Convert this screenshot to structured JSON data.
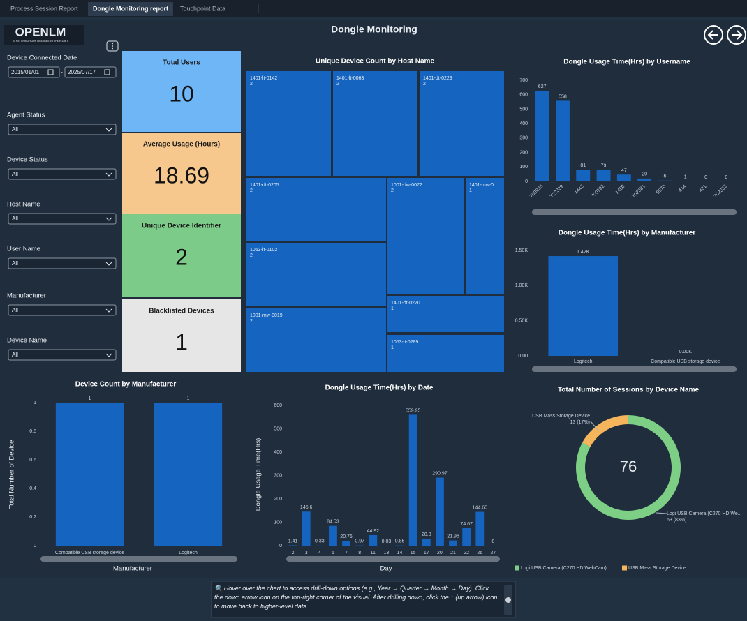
{
  "tabs": [
    {
      "label": "Process Session Report",
      "active": false
    },
    {
      "label": "Dongle Monitoring report",
      "active": true
    },
    {
      "label": "Touchpoint Data",
      "active": false
    }
  ],
  "header": {
    "title": "Dongle Monitoring",
    "logo": "OPENLM",
    "tagline": "STRETCHING YOUR LICENSES TO THEIR LIMIT"
  },
  "filters": {
    "date": {
      "label": "Device Connected Date",
      "from": "2015/01/01",
      "separator": "-",
      "to": "2025/07/17"
    },
    "dropdowns": [
      {
        "label": "Agent Status",
        "value": "All"
      },
      {
        "label": "Device Status",
        "value": "All"
      },
      {
        "label": "Host Name",
        "value": "All"
      },
      {
        "label": "User Name",
        "value": "All"
      },
      {
        "label": "Manufacturer",
        "value": "All"
      },
      {
        "label": "Device Name",
        "value": "All"
      }
    ]
  },
  "cards": [
    {
      "title": "Total Users",
      "value": 10,
      "color": "#6fb6f7"
    },
    {
      "title": "Average Usage (Hours)",
      "value": 18.69,
      "color": "#f6c88d"
    },
    {
      "title": "Unique Device Identifier",
      "value": 2,
      "color": "#7ccb89"
    },
    {
      "title": "Blacklisted Devices",
      "value": 1,
      "color": "#e6e6e6"
    }
  ],
  "chart_data": [
    {
      "type": "treemap",
      "title": "Unique Device Count by Host Name",
      "color": "#1565c0",
      "categories": [
        "1401-lt-0142",
        "1401-lt-0063",
        "1401-dt-0229",
        "1401-dt-0205",
        "1001-dw-0072",
        "1401-mw-0...",
        "1053-lt-0102",
        "1401-dt-0220",
        "1001-mw-0019",
        "1053-lt-0289"
      ],
      "values": [
        2,
        2,
        2,
        2,
        2,
        1,
        2,
        1,
        2,
        1
      ]
    },
    {
      "type": "bar",
      "title": "Dongle Usage Time(Hrs) by Username",
      "color": "#1565c0",
      "categories": [
        "700933",
        "T22339",
        "1442",
        "700792",
        "1450",
        "702881",
        "9570",
        "414",
        "431",
        "702332"
      ],
      "values": [
        627,
        558,
        81,
        79,
        47,
        20,
        6,
        1,
        0,
        0
      ],
      "ylim": [
        0,
        700
      ],
      "yticks": [
        0,
        100,
        200,
        300,
        400,
        500,
        600,
        700
      ]
    },
    {
      "type": "bar",
      "title": "Dongle Usage Time(Hrs) by Manufacturer",
      "color": "#1565c0",
      "categories": [
        "Logitech",
        "Compatible USB storage device"
      ],
      "values": [
        1420,
        0
      ],
      "value_labels": [
        "1.42K",
        "0.00K"
      ],
      "ylim": [
        0,
        1500
      ],
      "yticks": [
        {
          "value": 0,
          "label": "0.00"
        },
        {
          "value": 500,
          "label": "0.50K"
        },
        {
          "value": 1000,
          "label": "1.00K"
        },
        {
          "value": 1500,
          "label": "1.50K"
        }
      ]
    },
    {
      "type": "bar",
      "title": "Device Count by Manufacturer",
      "color": "#1565c0",
      "categories": [
        "Compatible USB storage device",
        "Logitech"
      ],
      "values": [
        1,
        1
      ],
      "xlabel": "Manufacturer",
      "ylabel": "Total Number of Device",
      "ylim": [
        0,
        1
      ],
      "yticks": [
        0,
        0.2,
        0.4,
        0.6,
        0.8,
        1
      ]
    },
    {
      "type": "bar",
      "title": "Dongle Usage Time(Hrs) by Date",
      "color": "#1565c0",
      "categories": [
        "2",
        "3",
        "4",
        "5",
        "7",
        "8",
        "11",
        "13",
        "14",
        "15",
        "17",
        "20",
        "21",
        "22",
        "26",
        "27"
      ],
      "values": [
        1.41,
        145.6,
        0.33,
        84.53,
        20.76,
        0.97,
        44.92,
        0.03,
        0.85,
        559.95,
        28.8,
        290.97,
        21.96,
        74.67,
        144.65,
        0
      ],
      "xlabel": "Day",
      "ylabel": "Dongle Usage Time(Hrs)",
      "ylim": [
        0,
        600
      ],
      "yticks": [
        0,
        100,
        200,
        300,
        400,
        500,
        600
      ]
    },
    {
      "type": "pie",
      "title": "Total Number of Sessions by Device Name",
      "categories": [
        "Logi USB Camera (C270 HD WebCam)",
        "USB Mass Storage Device"
      ],
      "slice_names": [
        "Logi USB Camera (C270 HD We...",
        "USB Mass Storage Device"
      ],
      "values": [
        63,
        13
      ],
      "value_labels": [
        "63 (83%)",
        "13 (17%)"
      ],
      "colors": [
        "#7dcf85",
        "#f5b55c"
      ],
      "total": 76
    }
  ],
  "help_text": "🔍 Hover over the chart to access drill-down options (e.g., Year → Quarter → Month → Day). Click the down arrow icon on the top-right corner of the visual. After drilling down, click the ↑ (up arrow) icon to move back to higher-level data."
}
